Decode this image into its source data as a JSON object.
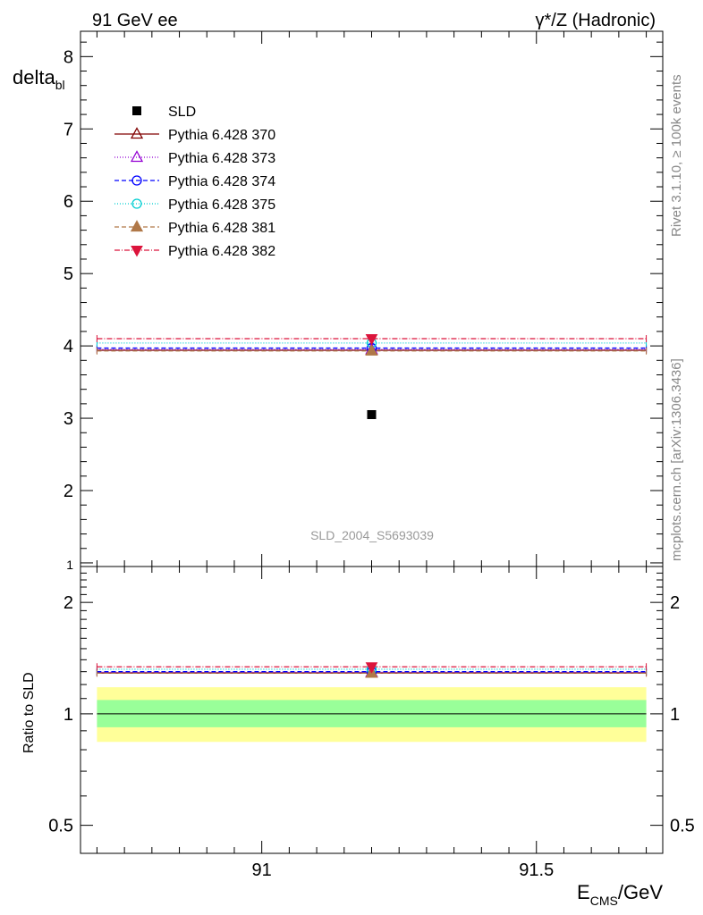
{
  "header": {
    "left": "91 GeV ee",
    "right": "γ*/Z (Hadronic)"
  },
  "side_text": {
    "rivet": "Rivet 3.1.10, ≥ 100k events",
    "mcplots": "mcplots.cern.ch [arXiv:1306.3436]"
  },
  "chart_data": [
    {
      "type": "scatter",
      "panel": "main",
      "ylabel_main": "delta",
      "ylabel_sub": "bl",
      "watermark": "SLD_2004_S5693039",
      "ylim": [
        0.95,
        8.35
      ],
      "yticks": [
        1,
        2,
        3,
        4,
        5,
        6,
        7,
        8
      ],
      "ytick_labels": [
        "1",
        "2",
        "3",
        "4",
        "5",
        "6",
        "7",
        "8"
      ],
      "x_range": [
        90.67,
        91.73
      ],
      "legend_position": "top-left",
      "data": {
        "name": "SLD",
        "x": 91.2,
        "y": 3.05,
        "color": "#000000",
        "marker": "square-filled"
      },
      "series": [
        {
          "name": "Pythia 6.428 370",
          "x": 91.2,
          "y": 3.94,
          "color": "#800000",
          "marker": "triangle-open",
          "dash": ""
        },
        {
          "name": "Pythia 6.428 373",
          "x": 91.2,
          "y": 3.95,
          "color": "#9400d3",
          "marker": "triangle-open",
          "dash": "1,2"
        },
        {
          "name": "Pythia 6.428 374",
          "x": 91.2,
          "y": 3.97,
          "color": "#0000ff",
          "marker": "circle-open",
          "dash": "5,3"
        },
        {
          "name": "Pythia 6.428 375",
          "x": 91.2,
          "y": 4.04,
          "color": "#00ced1",
          "marker": "circle-open",
          "dash": "1,2"
        },
        {
          "name": "Pythia 6.428 381",
          "x": 91.2,
          "y": 3.93,
          "color": "#b07848",
          "marker": "triangle-filled",
          "dash": "5,3"
        },
        {
          "name": "Pythia 6.428 382",
          "x": 91.2,
          "y": 4.1,
          "color": "#dc143c",
          "marker": "triangledown-filled",
          "dash": "6,2,1,2"
        }
      ]
    },
    {
      "type": "scatter",
      "panel": "ratio",
      "ylabel": "Ratio to SLD",
      "xlabel_main": "E",
      "xlabel_sub": "CMS",
      "xlabel_tail": "/GeV",
      "ylim": [
        0.42,
        2.5
      ],
      "log_y": true,
      "yticks": [
        0.5,
        1,
        2
      ],
      "ytick_labels": [
        "0.5",
        "1",
        "2"
      ],
      "x_range": [
        90.67,
        91.73
      ],
      "xticks": [
        91,
        91.5
      ],
      "xtick_labels": [
        "91",
        "91.5"
      ],
      "band_1sigma": [
        0.92,
        1.09
      ],
      "band_2sigma": [
        0.84,
        1.18
      ],
      "band_colors": {
        "inner": "#99ff99",
        "outer": "#ffff99"
      },
      "series": [
        {
          "name": "Pythia 6.428 370",
          "y": 1.29
        },
        {
          "name": "Pythia 6.428 373",
          "y": 1.295
        },
        {
          "name": "Pythia 6.428 374",
          "y": 1.3
        },
        {
          "name": "Pythia 6.428 375",
          "y": 1.32
        },
        {
          "name": "Pythia 6.428 381",
          "y": 1.288
        },
        {
          "name": "Pythia 6.428 382",
          "y": 1.34
        }
      ]
    }
  ]
}
